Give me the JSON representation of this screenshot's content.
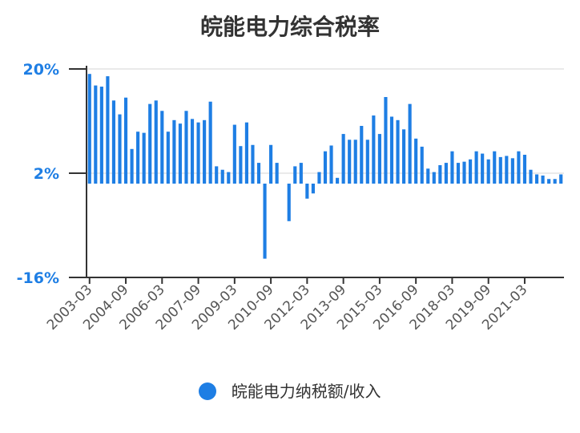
{
  "chart_data": {
    "type": "bar",
    "title": "皖能电力综合税率",
    "xlabel": "",
    "ylabel": "",
    "yticks": [
      "20%",
      "2%",
      "-16%"
    ],
    "ylim": [
      -16,
      20
    ],
    "grid": true,
    "legend_position": "bottom",
    "tick_labels": [
      "2003-03",
      "2004-09",
      "2006-03",
      "2007-09",
      "2009-03",
      "2010-09",
      "2012-03",
      "2013-09",
      "2015-03",
      "2016-09",
      "2018-03",
      "2019-09",
      "2021-03"
    ],
    "series": [
      {
        "name": "皖能电力纳税额/收入",
        "color": "#1e7ee4",
        "values": [
          19.0,
          17.0,
          16.8,
          18.6,
          14.4,
          12.0,
          14.9,
          6.0,
          9.0,
          8.8,
          13.8,
          14.4,
          12.6,
          9.0,
          11.0,
          10.4,
          12.6,
          11.2,
          10.6,
          11.0,
          14.2,
          3.0,
          2.4,
          2.0,
          10.2,
          6.5,
          10.6,
          6.7,
          3.6,
          -13.0,
          6.7,
          3.6,
          0,
          -6.5,
          3.0,
          3.6,
          -2.6,
          -1.7,
          2.0,
          5.6,
          6.6,
          1.0,
          8.6,
          7.6,
          7.6,
          10.0,
          7.6,
          11.8,
          8.6,
          15.0,
          11.6,
          11.0,
          9.4,
          13.8,
          7.8,
          6.4,
          2.6,
          2.0,
          3.2,
          3.6,
          5.6,
          3.6,
          3.8,
          4.2,
          5.6,
          5.2,
          4.2,
          5.6,
          4.6,
          4.8,
          4.4,
          5.6,
          5.0,
          2.4,
          1.6,
          1.4,
          0.8,
          0.8,
          1.6
        ]
      }
    ]
  }
}
